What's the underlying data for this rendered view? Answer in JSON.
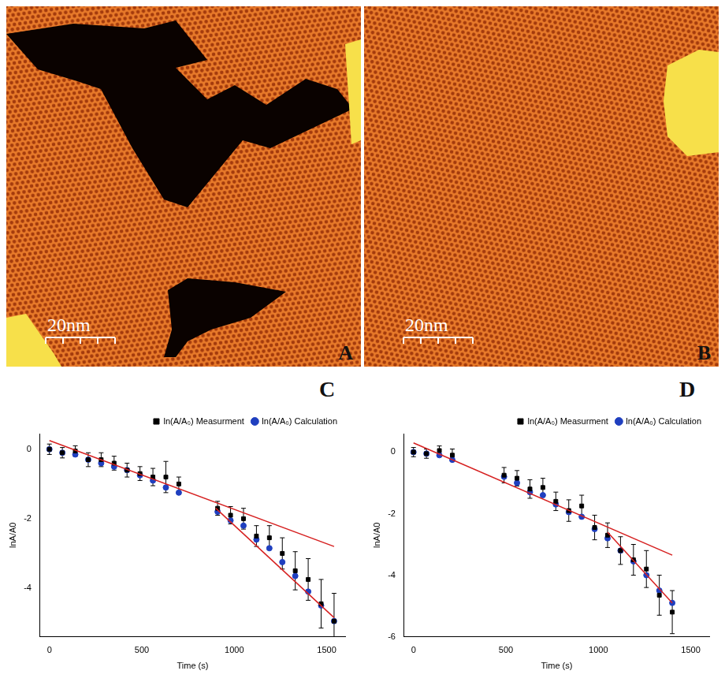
{
  "panels": [
    {
      "panel_label": "A",
      "scale_bar": "20nm"
    },
    {
      "panel_label": "B",
      "scale_bar": "20nm"
    }
  ],
  "chart_data": [
    {
      "type": "scatter",
      "panel_label": "C",
      "x_label": "Time (s)",
      "y_label": "lnA/A0",
      "xlim": [
        -50,
        1600
      ],
      "xticks": [
        0,
        500,
        1000,
        1500
      ],
      "ylim": [
        -5.4,
        0.45
      ],
      "yticks": [
        0,
        -2,
        -4
      ],
      "grid": false,
      "legend": "upper right",
      "series": [
        {
          "name": "ln(A/A₀) Measurment",
          "color": "#000000",
          "marker": "square",
          "x": [
            0,
            70,
            140,
            210,
            280,
            350,
            420,
            490,
            560,
            630,
            700,
            910,
            980,
            1050,
            1120,
            1190,
            1260,
            1330,
            1400,
            1470,
            1540
          ],
          "values": [
            0,
            -0.1,
            -0.05,
            -0.3,
            -0.3,
            -0.4,
            -0.6,
            -0.7,
            -0.8,
            -0.8,
            -1.0,
            -1.7,
            -1.9,
            -2.0,
            -2.5,
            -2.55,
            -3.0,
            -3.5,
            -3.75,
            -4.45,
            -4.95
          ],
          "errors": [
            0.15,
            0.15,
            0.15,
            0.2,
            0.2,
            0.2,
            0.2,
            0.2,
            0.25,
            0.45,
            0.2,
            0.2,
            0.25,
            0.3,
            0.3,
            0.35,
            0.45,
            0.55,
            0.6,
            0.7,
            0.8
          ]
        },
        {
          "name": "ln(A/A₀) Calculation",
          "color": "#1f3fbf",
          "marker": "circle",
          "x": [
            0,
            70,
            140,
            210,
            280,
            350,
            420,
            490,
            560,
            630,
            700,
            910,
            980,
            1050,
            1120,
            1190,
            1260,
            1330,
            1400,
            1470,
            1540
          ],
          "values": [
            0,
            -0.1,
            -0.15,
            -0.3,
            -0.4,
            -0.5,
            -0.6,
            -0.75,
            -0.9,
            -1.1,
            -1.25,
            -1.8,
            -2.05,
            -2.2,
            -2.6,
            -2.85,
            -3.25,
            -3.65,
            -4.1,
            -4.5,
            -4.95
          ]
        },
        {
          "color": "#d62020",
          "line_style": "solid",
          "x": [
            0,
            1540
          ],
          "values": [
            0.25,
            -2.8
          ]
        },
        {
          "color": "#d62020",
          "line_style": "solid",
          "x": [
            900,
            1540
          ],
          "values": [
            -1.7,
            -4.85
          ]
        }
      ]
    },
    {
      "type": "scatter",
      "panel_label": "D",
      "x_label": "Time (s)",
      "y_label": "lnA/A0",
      "xlim": [
        -50,
        1600
      ],
      "xticks": [
        0,
        500,
        1000,
        1500
      ],
      "ylim": [
        -6,
        0.6
      ],
      "yticks": [
        0,
        -2,
        -4,
        -6
      ],
      "grid": false,
      "legend": "upper right",
      "series": [
        {
          "name": "ln(A/A₀) Measurment",
          "color": "#000000",
          "marker": "square",
          "x": [
            0,
            70,
            140,
            210,
            490,
            560,
            630,
            700,
            770,
            840,
            910,
            980,
            1050,
            1120,
            1190,
            1260,
            1330,
            1400
          ],
          "values": [
            0,
            -0.05,
            0.05,
            -0.1,
            -0.75,
            -0.85,
            -1.2,
            -1.15,
            -1.6,
            -1.9,
            -1.75,
            -2.45,
            -2.7,
            -3.2,
            -3.5,
            -3.8,
            -4.65,
            -5.2
          ],
          "errors": [
            0.15,
            0.15,
            0.15,
            0.2,
            0.25,
            0.25,
            0.3,
            0.3,
            0.3,
            0.35,
            0.35,
            0.4,
            0.4,
            0.45,
            0.5,
            0.6,
            0.65,
            0.7
          ]
        },
        {
          "name": "ln(A/A₀) Calculation",
          "color": "#1f3fbf",
          "marker": "circle",
          "x": [
            0,
            70,
            140,
            210,
            490,
            560,
            630,
            700,
            770,
            840,
            910,
            980,
            1050,
            1120,
            1190,
            1260,
            1330,
            1400
          ],
          "values": [
            0,
            -0.05,
            -0.1,
            -0.25,
            -0.8,
            -1.0,
            -1.3,
            -1.4,
            -1.7,
            -1.95,
            -2.1,
            -2.5,
            -2.8,
            -3.2,
            -3.55,
            -4.0,
            -4.5,
            -4.9
          ]
        },
        {
          "color": "#d62020",
          "line_style": "solid",
          "x": [
            0,
            1400
          ],
          "values": [
            0.3,
            -3.35
          ]
        },
        {
          "color": "#d62020",
          "line_style": "solid",
          "x": [
            1050,
            1400
          ],
          "values": [
            -2.6,
            -4.9
          ]
        }
      ]
    }
  ]
}
